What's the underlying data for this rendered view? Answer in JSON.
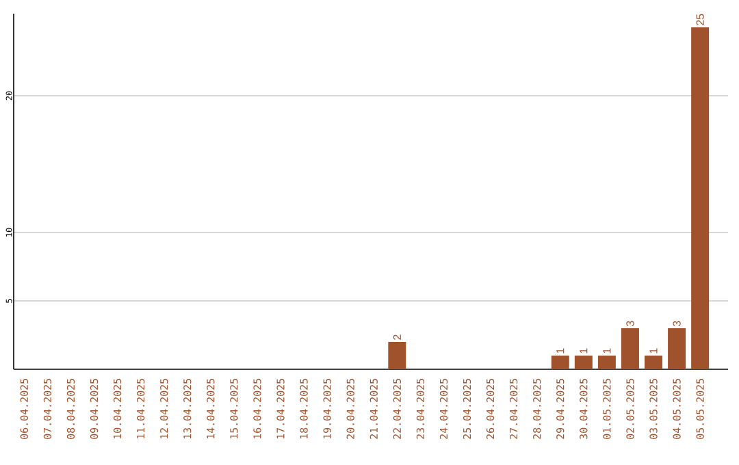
{
  "chart_data": {
    "type": "bar",
    "categories": [
      "06.04.2025",
      "07.04.2025",
      "08.04.2025",
      "09.04.2025",
      "10.04.2025",
      "11.04.2025",
      "12.04.2025",
      "13.04.2025",
      "14.04.2025",
      "15.04.2025",
      "16.04.2025",
      "17.04.2025",
      "18.04.2025",
      "19.04.2025",
      "20.04.2025",
      "21.04.2025",
      "22.04.2025",
      "23.04.2025",
      "24.04.2025",
      "25.04.2025",
      "26.04.2025",
      "27.04.2025",
      "28.04.2025",
      "29.04.2025",
      "30.04.2025",
      "01.05.2025",
      "02.05.2025",
      "03.05.2025",
      "04.05.2025",
      "05.05.2025"
    ],
    "values": [
      0,
      0,
      0,
      0,
      0,
      0,
      0,
      0,
      0,
      0,
      0,
      0,
      0,
      0,
      0,
      0,
      2,
      0,
      0,
      0,
      0,
      0,
      0,
      1,
      1,
      1,
      3,
      1,
      3,
      25
    ],
    "value_labels": [
      null,
      null,
      null,
      null,
      null,
      null,
      null,
      null,
      null,
      null,
      null,
      null,
      null,
      null,
      null,
      null,
      "2",
      null,
      null,
      null,
      null,
      null,
      null,
      "1",
      "1",
      "1",
      "3",
      "1",
      "3",
      "25"
    ],
    "color": "#a0522d",
    "ylim": [
      0,
      26
    ],
    "yticks": [
      5,
      10,
      20
    ],
    "grid": "y"
  }
}
